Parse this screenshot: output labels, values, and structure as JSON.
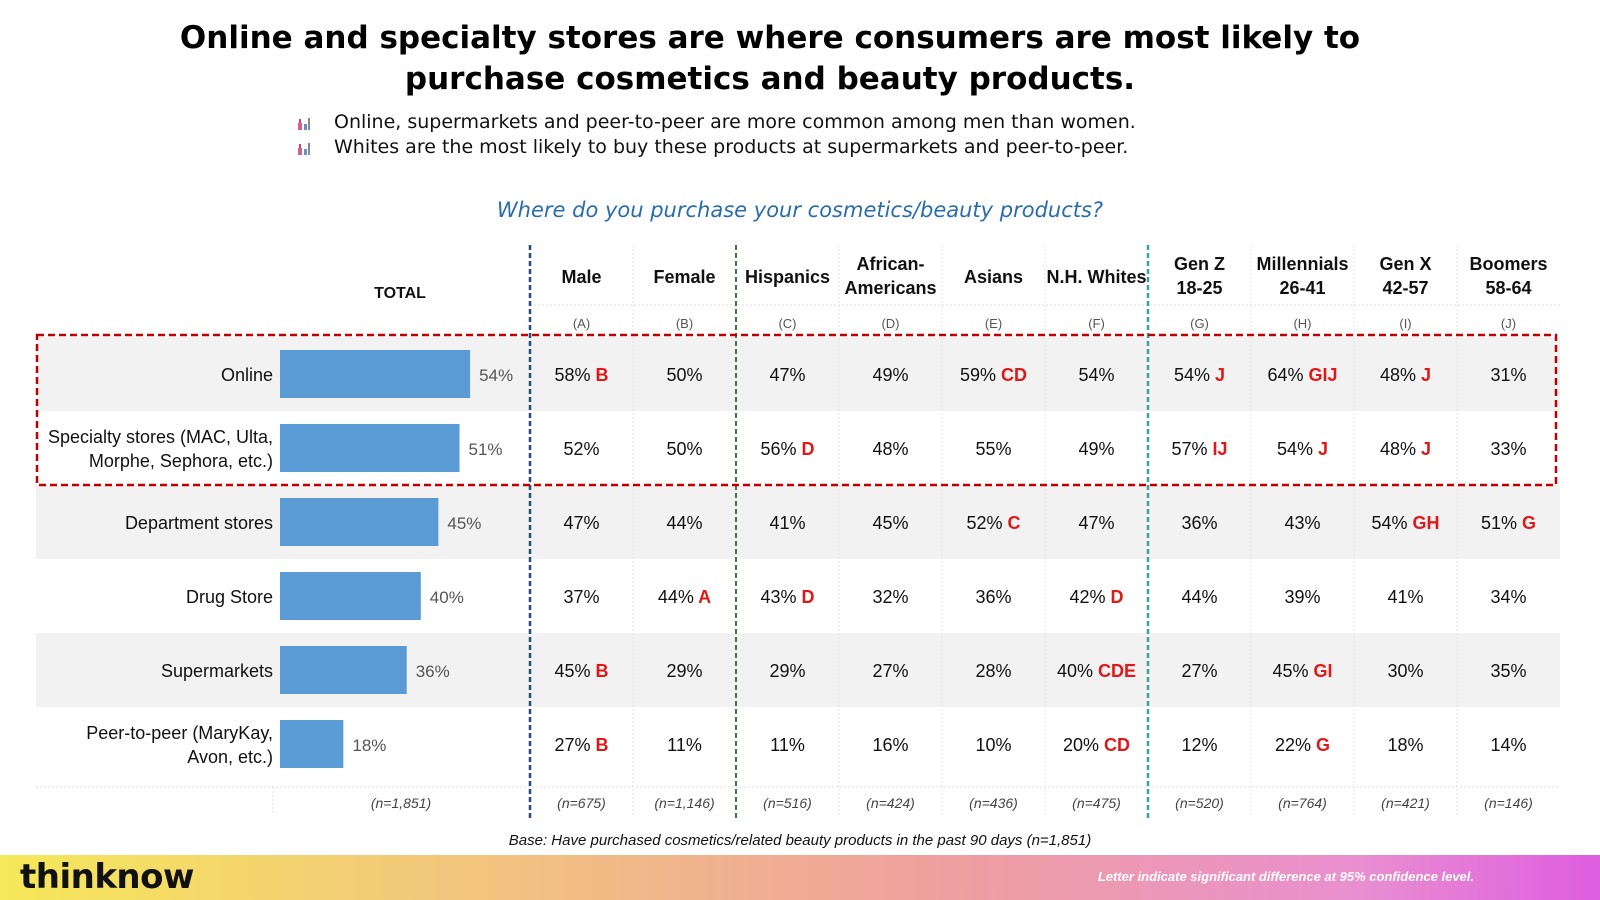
{
  "title": "Online and specialty stores are where consumers are most likely to purchase cosmetics and beauty products.",
  "bullets": [
    "Online, supermarkets and peer-to-peer are more common among men than women.",
    "Whites are the most likely to buy these products at supermarkets and peer-to-peer."
  ],
  "question": "Where do you purchase your cosmetics/beauty products?",
  "colors": {
    "bar": "#5b9bd5",
    "sig": "#e01818",
    "highlight": "#c00000",
    "band": "#f2f2f2"
  },
  "chart_data": {
    "type": "table",
    "total_label": "TOTAL",
    "total_n": "(n=1,851)",
    "columns": [
      {
        "label": [
          "Male"
        ],
        "letter": "(A)",
        "n": "(n=675)"
      },
      {
        "label": [
          "Female"
        ],
        "letter": "(B)",
        "n": "(n=1,146)"
      },
      {
        "label": [
          "Hispanics"
        ],
        "letter": "(C)",
        "n": "(n=516)"
      },
      {
        "label": [
          "African-",
          "Americans"
        ],
        "letter": "(D)",
        "n": "(n=424)"
      },
      {
        "label": [
          "Asians"
        ],
        "letter": "(E)",
        "n": "(n=436)"
      },
      {
        "label": [
          "N.H. Whites"
        ],
        "letter": "(F)",
        "n": "(n=475)"
      },
      {
        "label": [
          "Gen Z",
          "18-25"
        ],
        "letter": "(G)",
        "n": "(n=520)"
      },
      {
        "label": [
          "Millennials",
          "26-41"
        ],
        "letter": "(H)",
        "n": "(n=764)"
      },
      {
        "label": [
          "Gen X",
          "42-57"
        ],
        "letter": "(I)",
        "n": "(n=421)"
      },
      {
        "label": [
          "Boomers",
          "58-64"
        ],
        "letter": "(J)",
        "n": "(n=146)"
      }
    ],
    "rows": [
      {
        "label": [
          "Online"
        ],
        "total": 54,
        "total_label": "54%",
        "cells": [
          [
            "58%",
            "B"
          ],
          [
            "50%",
            ""
          ],
          [
            "47%",
            ""
          ],
          [
            "49%",
            ""
          ],
          [
            "59%",
            "CD"
          ],
          [
            "54%",
            ""
          ],
          [
            "54%",
            "J"
          ],
          [
            "64%",
            "GIJ"
          ],
          [
            "48%",
            "J"
          ],
          [
            "31%",
            ""
          ]
        ]
      },
      {
        "label": [
          "Specialty stores (MAC, Ulta,",
          "Morphe, Sephora, etc.)"
        ],
        "total": 51,
        "total_label": "51%",
        "cells": [
          [
            "52%",
            ""
          ],
          [
            "50%",
            ""
          ],
          [
            "56%",
            "D"
          ],
          [
            "48%",
            ""
          ],
          [
            "55%",
            ""
          ],
          [
            "49%",
            ""
          ],
          [
            "57%",
            "IJ"
          ],
          [
            "54%",
            "J"
          ],
          [
            "48%",
            "J"
          ],
          [
            "33%",
            ""
          ]
        ]
      },
      {
        "label": [
          "Department stores"
        ],
        "total": 45,
        "total_label": "45%",
        "cells": [
          [
            "47%",
            ""
          ],
          [
            "44%",
            ""
          ],
          [
            "41%",
            ""
          ],
          [
            "45%",
            ""
          ],
          [
            "52%",
            "C"
          ],
          [
            "47%",
            ""
          ],
          [
            "36%",
            ""
          ],
          [
            "43%",
            ""
          ],
          [
            "54%",
            "GH"
          ],
          [
            "51%",
            "G"
          ]
        ]
      },
      {
        "label": [
          "Drug Store"
        ],
        "total": 40,
        "total_label": "40%",
        "cells": [
          [
            "37%",
            ""
          ],
          [
            "44%",
            "A"
          ],
          [
            "43%",
            "D"
          ],
          [
            "32%",
            ""
          ],
          [
            "36%",
            ""
          ],
          [
            "42%",
            "D"
          ],
          [
            "44%",
            ""
          ],
          [
            "39%",
            ""
          ],
          [
            "41%",
            ""
          ],
          [
            "34%",
            ""
          ]
        ]
      },
      {
        "label": [
          "Supermarkets"
        ],
        "total": 36,
        "total_label": "36%",
        "cells": [
          [
            "45%",
            "B"
          ],
          [
            "29%",
            ""
          ],
          [
            "29%",
            ""
          ],
          [
            "27%",
            ""
          ],
          [
            "28%",
            ""
          ],
          [
            "40%",
            "CDE"
          ],
          [
            "27%",
            ""
          ],
          [
            "45%",
            "GI"
          ],
          [
            "30%",
            ""
          ],
          [
            "35%",
            ""
          ]
        ]
      },
      {
        "label": [
          "Peer-to-peer (MaryKay,",
          "Avon, etc.)"
        ],
        "total": 18,
        "total_label": "18%",
        "cells": [
          [
            "27%",
            "B"
          ],
          [
            "11%",
            ""
          ],
          [
            "11%",
            ""
          ],
          [
            "16%",
            ""
          ],
          [
            "10%",
            ""
          ],
          [
            "20%",
            "CD"
          ],
          [
            "12%",
            ""
          ],
          [
            "22%",
            "G"
          ],
          [
            "18%",
            ""
          ],
          [
            "14%",
            ""
          ]
        ]
      }
    ],
    "highlighted_rows": [
      "Online",
      "Specialty stores (MAC, Ulta, Morphe, Sephora, etc.)"
    ]
  },
  "base_note": "Base: Have purchased cosmetics/related beauty products in the past 90 days (n=1,851)",
  "brand": "thinknow",
  "footer_note": "Letter indicate significant difference at 95% confidence level."
}
